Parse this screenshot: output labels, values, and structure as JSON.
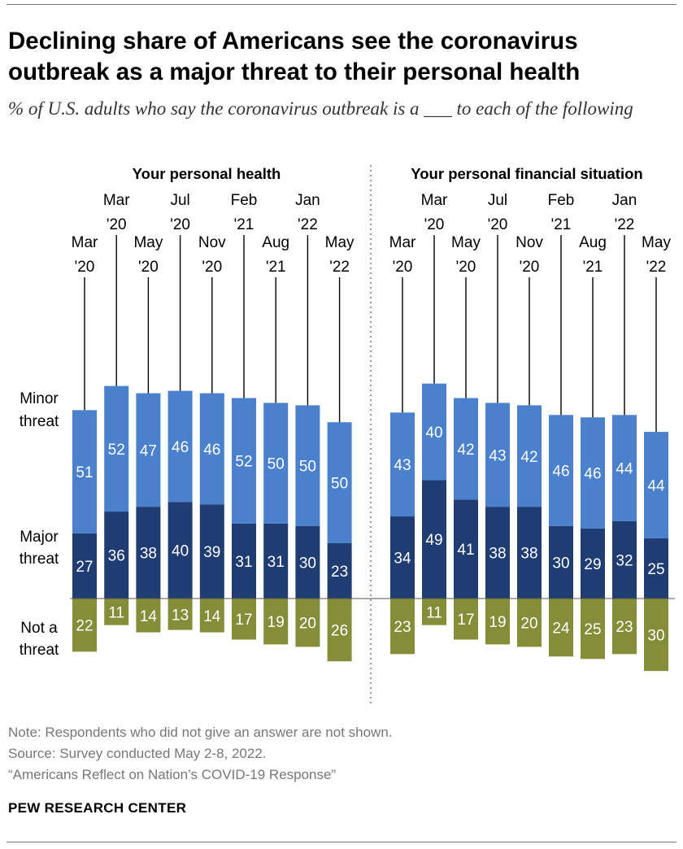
{
  "title_line1": "Declining share of Americans see the coronavirus",
  "title_line2": "outbreak as a major threat to their personal health",
  "subtitle": "% of U.S. adults who say the coronavirus outbreak is a ___ to each of the following",
  "notes": {
    "note": "Note: Respondents who did not give an answer are not shown.",
    "source": "Source: Survey conducted May 2-8, 2022.",
    "report": "“Americans Reflect on Nation’s COVID-19 Response”"
  },
  "org": "PEW RESEARCH CENTER",
  "colors": {
    "major": "#1f3d73",
    "minor": "#4a80cc",
    "not": "#868d39"
  },
  "chart_data": {
    "type": "bar",
    "stacking": "diverging",
    "row_labels": [
      {
        "key": "minor",
        "line1": "Minor",
        "line2": "threat"
      },
      {
        "key": "major",
        "line1": "Major",
        "line2": "threat"
      },
      {
        "key": "not",
        "line1": "Not a",
        "line2": "threat"
      }
    ],
    "panels": [
      {
        "title": "Your personal health",
        "categories": [
          {
            "line1": "Mar",
            "line2": "'20"
          },
          {
            "line1": "Mar",
            "line2": "'20"
          },
          {
            "line1": "May",
            "line2": "'20"
          },
          {
            "line1": "Jul",
            "line2": "'20"
          },
          {
            "line1": "Nov",
            "line2": "'20"
          },
          {
            "line1": "Feb",
            "line2": "'21"
          },
          {
            "line1": "Aug",
            "line2": "'21"
          },
          {
            "line1": "Jan",
            "line2": "'22"
          },
          {
            "line1": "May",
            "line2": "'22"
          }
        ],
        "series": [
          {
            "name": "Major threat",
            "key": "major",
            "values": [
              27,
              36,
              38,
              40,
              39,
              31,
              31,
              30,
              23
            ]
          },
          {
            "name": "Minor threat",
            "key": "minor",
            "values": [
              51,
              52,
              47,
              46,
              46,
              52,
              50,
              50,
              50
            ]
          },
          {
            "name": "Not a threat",
            "key": "not",
            "values": [
              22,
              11,
              14,
              13,
              14,
              17,
              19,
              20,
              26
            ]
          }
        ]
      },
      {
        "title": "Your personal financial situation",
        "categories": [
          {
            "line1": "Mar",
            "line2": "'20"
          },
          {
            "line1": "Mar",
            "line2": "'20"
          },
          {
            "line1": "May",
            "line2": "'20"
          },
          {
            "line1": "Jul",
            "line2": "'20"
          },
          {
            "line1": "Nov",
            "line2": "'20"
          },
          {
            "line1": "Feb",
            "line2": "'21"
          },
          {
            "line1": "Aug",
            "line2": "'21"
          },
          {
            "line1": "Jan",
            "line2": "'22"
          },
          {
            "line1": "May",
            "line2": "'22"
          }
        ],
        "series": [
          {
            "name": "Major threat",
            "key": "major",
            "values": [
              34,
              49,
              41,
              38,
              38,
              30,
              29,
              32,
              25
            ]
          },
          {
            "name": "Minor threat",
            "key": "minor",
            "values": [
              43,
              40,
              42,
              43,
              42,
              46,
              46,
              44,
              44
            ]
          },
          {
            "name": "Not a threat",
            "key": "not",
            "values": [
              23,
              11,
              17,
              19,
              20,
              24,
              25,
              23,
              30
            ]
          }
        ]
      }
    ]
  }
}
